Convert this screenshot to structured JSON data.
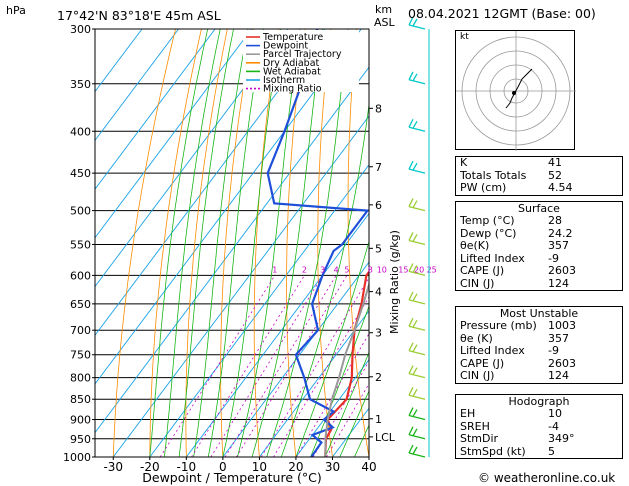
{
  "header": {
    "station": "17°42'N  83°18'E  45m  ASL",
    "date": "08.04.2021  12GMT  (Base: 00)",
    "hpa_label": "hPa",
    "km_label": "km",
    "asl_label": "ASL"
  },
  "chart_data": {
    "type": "skew-t",
    "xlabel": "Dewpoint / Temperature (°C)",
    "ylabel_right": "Mixing Ratio (g/kg)",
    "pressure_levels": [
      300,
      350,
      400,
      450,
      500,
      550,
      600,
      650,
      700,
      750,
      800,
      850,
      900,
      950,
      1000
    ],
    "temp_ticks": [
      -30,
      -20,
      -10,
      0,
      10,
      20,
      30,
      40
    ],
    "xlim": [
      -35,
      40
    ],
    "km_ticks": [
      {
        "p": 375,
        "label": "8"
      },
      {
        "p": 442,
        "label": "7"
      },
      {
        "p": 492,
        "label": "6"
      },
      {
        "p": 556,
        "label": "5"
      },
      {
        "p": 628,
        "label": "4"
      },
      {
        "p": 705,
        "label": "3"
      },
      {
        "p": 798,
        "label": "2"
      },
      {
        "p": 898,
        "label": "1"
      },
      {
        "p": 945,
        "label": "LCL"
      }
    ],
    "mixing_ratio_labels": [
      "1",
      "2",
      "3",
      "4",
      "5",
      "8",
      "10",
      "15",
      "20",
      "25"
    ],
    "mixing_ratio_values": [
      1,
      2,
      3,
      4,
      5,
      8,
      10,
      15,
      20,
      25
    ],
    "legend": [
      "Temperature",
      "Dewpoint",
      "Parcel Trajectory",
      "Dry Adiabat",
      "Wet Adiabat",
      "Isotherm",
      "Mixing Ratio"
    ],
    "series": [
      {
        "name": "Temperature",
        "color": "#e8302a",
        "points": [
          [
            1000,
            28
          ],
          [
            950,
            24.5
          ],
          [
            925,
            24
          ],
          [
            900,
            21
          ],
          [
            850,
            22
          ],
          [
            800,
            19
          ],
          [
            750,
            14.5
          ],
          [
            700,
            10
          ],
          [
            650,
            6.5
          ],
          [
            600,
            2
          ],
          [
            575,
            2
          ],
          [
            550,
            0.5
          ],
          [
            500,
            -5.5
          ],
          [
            470,
            -6
          ],
          [
            450,
            -9
          ],
          [
            400,
            -16
          ],
          [
            350,
            -24
          ],
          [
            300,
            -33
          ]
        ]
      },
      {
        "name": "Dewpoint",
        "color": "#1e4fd8",
        "points": [
          [
            1000,
            24.2
          ],
          [
            960,
            24
          ],
          [
            940,
            20
          ],
          [
            920,
            24
          ],
          [
            900,
            20
          ],
          [
            880,
            21
          ],
          [
            850,
            12
          ],
          [
            800,
            6
          ],
          [
            750,
            -1
          ],
          [
            700,
            0
          ],
          [
            650,
            -7
          ],
          [
            600,
            -10
          ],
          [
            560,
            -12
          ],
          [
            550,
            -11
          ],
          [
            500,
            -11
          ],
          [
            490,
            -38
          ],
          [
            450,
            -46
          ],
          [
            400,
            -50
          ],
          [
            350,
            -55
          ],
          [
            300,
            -62
          ]
        ]
      },
      {
        "name": "Parcel Trajectory",
        "color": "#999999",
        "points": [
          [
            1000,
            28
          ],
          [
            945,
            24
          ],
          [
            900,
            21
          ],
          [
            850,
            18
          ],
          [
            800,
            15.5
          ],
          [
            750,
            12.5
          ],
          [
            700,
            10
          ],
          [
            650,
            7
          ],
          [
            600,
            3.5
          ],
          [
            550,
            -0.5
          ],
          [
            500,
            -5
          ],
          [
            450,
            -10.5
          ],
          [
            400,
            -17
          ],
          [
            350,
            -24.5
          ],
          [
            300,
            -34
          ]
        ]
      }
    ],
    "wind_barbs_color": "#00c8c8",
    "hodograph_label": "kt"
  },
  "indices": {
    "rows": [
      {
        "label": "K",
        "value": "41"
      },
      {
        "label": "Totals Totals",
        "value": "52"
      },
      {
        "label": "PW (cm)",
        "value": "4.54"
      }
    ]
  },
  "surface": {
    "title": "Surface",
    "rows": [
      {
        "label": "Temp (°C)",
        "value": "28"
      },
      {
        "label": "Dewp (°C)",
        "value": "24.2"
      },
      {
        "label": "θe(K)",
        "value": "357"
      },
      {
        "label": "Lifted Index",
        "value": "-9"
      },
      {
        "label": "CAPE (J)",
        "value": "2603"
      },
      {
        "label": "CIN (J)",
        "value": "124"
      }
    ]
  },
  "unstable": {
    "title": "Most Unstable",
    "rows": [
      {
        "label": "Pressure (mb)",
        "value": "1003"
      },
      {
        "label": "θe (K)",
        "value": "357"
      },
      {
        "label": "Lifted Index",
        "value": "-9"
      },
      {
        "label": "CAPE (J)",
        "value": "2603"
      },
      {
        "label": "CIN (J)",
        "value": "124"
      }
    ]
  },
  "hodograph": {
    "title": "Hodograph",
    "rows": [
      {
        "label": "EH",
        "value": "10"
      },
      {
        "label": "SREH",
        "value": "-4"
      },
      {
        "label": "StmDir",
        "value": "349°"
      },
      {
        "label": "StmSpd (kt)",
        "value": "5"
      }
    ]
  },
  "footer": {
    "copyright": "© weatheronline.co.uk"
  }
}
